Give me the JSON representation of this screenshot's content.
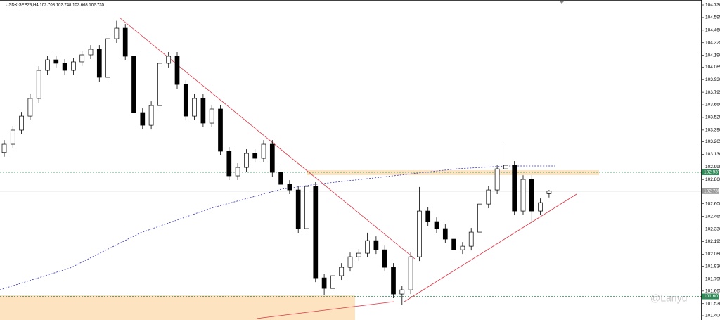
{
  "chart_data": {
    "type": "candlestick",
    "title": "USDX-SEP23,H4 102.708 102.748 102.668 102.735",
    "watermark": "@Lanyu",
    "ylim": [
      101.4,
      104.73
    ],
    "yticks": [
      {
        "value": 104.73,
        "label": "104.730"
      },
      104.595,
      {
        "value": 104.46,
        "label": "104.460"
      },
      104.325,
      {
        "value": 104.19,
        "label": "104.190"
      },
      104.065,
      {
        "value": 103.93,
        "label": "103.930"
      },
      103.795,
      {
        "value": 103.66,
        "label": "103.660"
      },
      103.525,
      {
        "value": 103.39,
        "label": "103.390"
      },
      103.265,
      {
        "value": 103.13,
        "label": "103.130"
      },
      102.995,
      {
        "value": 102.86,
        "label": "102.860"
      },
      {
        "value": 102.6,
        "label": "102.600"
      },
      102.465,
      {
        "value": 102.33,
        "label": "102.330"
      },
      102.195,
      {
        "value": 102.06,
        "label": "102.060"
      },
      {
        "value": 101.93,
        "label": "101.930"
      },
      101.795,
      101.665,
      {
        "value": 101.53,
        "label": "101.530"
      },
      {
        "value": 101.4,
        "label": "101.400"
      }
    ],
    "levels": [
      {
        "value": 102.937,
        "color": "#2e8b57"
      },
      {
        "value": 102.735,
        "color": "#999999"
      },
      {
        "value": 101.607,
        "color": "#2e8b57"
      }
    ],
    "up_color": "#ffffff",
    "down_color": "#000000",
    "open": [
      103.15,
      103.238,
      103.389,
      103.539,
      103.728,
      104.029,
      104.142,
      104.105,
      104.029,
      104.12,
      104.195,
      104.255,
      103.954,
      104.368,
      104.481,
      104.18,
      103.577,
      103.441,
      103.652,
      104.105,
      104.18,
      103.878,
      103.539,
      103.728,
      103.464,
      103.615,
      103.163,
      102.899,
      102.989,
      103.14,
      103.087,
      103.238,
      102.936,
      102.808,
      102.748,
      102.334,
      102.786,
      101.806,
      101.693,
      101.829,
      101.919,
      102.032,
      102.07,
      102.205,
      102.107,
      101.919,
      101.633,
      101.678,
      102.032,
      102.522,
      102.409,
      102.334,
      102.221,
      102.107,
      102.145,
      102.296,
      102.597,
      102.748,
      102.974,
      103.012,
      102.522,
      102.861,
      102.522,
      102.708
    ],
    "high": [
      103.283,
      103.434,
      103.584,
      103.773,
      104.074,
      104.187,
      104.187,
      104.15,
      104.165,
      104.24,
      104.3,
      104.3,
      104.413,
      104.56,
      104.526,
      104.225,
      103.622,
      103.697,
      104.15,
      104.225,
      104.225,
      103.923,
      103.773,
      103.773,
      103.66,
      103.66,
      103.208,
      103.034,
      103.185,
      103.185,
      103.283,
      103.283,
      102.981,
      102.853,
      102.793,
      102.88,
      102.831,
      101.851,
      101.874,
      101.964,
      102.077,
      102.115,
      102.29,
      102.25,
      102.152,
      101.964,
      101.723,
      102.077,
      102.78,
      102.567,
      102.454,
      102.379,
      102.266,
      102.19,
      102.341,
      102.642,
      102.793,
      103.019,
      103.22,
      103.057,
      102.906,
      102.906,
      102.657,
      102.748
    ],
    "low": [
      103.105,
      103.193,
      103.344,
      103.494,
      103.683,
      103.984,
      104.06,
      103.984,
      103.984,
      104.075,
      104.15,
      103.909,
      103.909,
      104.323,
      104.135,
      103.532,
      103.396,
      103.396,
      103.607,
      104.06,
      103.833,
      103.494,
      103.494,
      103.419,
      103.419,
      103.118,
      102.854,
      102.854,
      102.944,
      103.042,
      103.042,
      102.891,
      102.763,
      102.703,
      102.289,
      102.289,
      101.761,
      101.62,
      101.648,
      101.784,
      101.874,
      101.987,
      102.025,
      102.062,
      101.874,
      101.588,
      101.52,
      101.633,
      101.987,
      102.364,
      102.289,
      102.176,
      102.0,
      102.062,
      102.1,
      102.251,
      102.552,
      102.703,
      102.929,
      102.477,
      102.477,
      102.4,
      102.477,
      102.668
    ],
    "close": [
      103.238,
      103.389,
      103.539,
      103.728,
      104.029,
      104.142,
      104.105,
      104.029,
      104.12,
      104.195,
      104.255,
      103.954,
      104.368,
      104.481,
      104.18,
      103.577,
      103.441,
      103.652,
      104.105,
      104.18,
      103.878,
      103.539,
      103.728,
      103.464,
      103.615,
      103.163,
      102.899,
      102.989,
      103.14,
      103.087,
      103.238,
      102.936,
      102.808,
      102.748,
      102.334,
      102.786,
      101.806,
      101.693,
      101.829,
      101.919,
      102.032,
      102.07,
      102.205,
      102.107,
      101.919,
      101.633,
      101.678,
      102.032,
      102.522,
      102.409,
      102.334,
      102.221,
      102.107,
      102.145,
      102.296,
      102.597,
      102.748,
      102.974,
      103.012,
      102.522,
      102.861,
      102.522,
      102.612,
      102.735
    ]
  }
}
